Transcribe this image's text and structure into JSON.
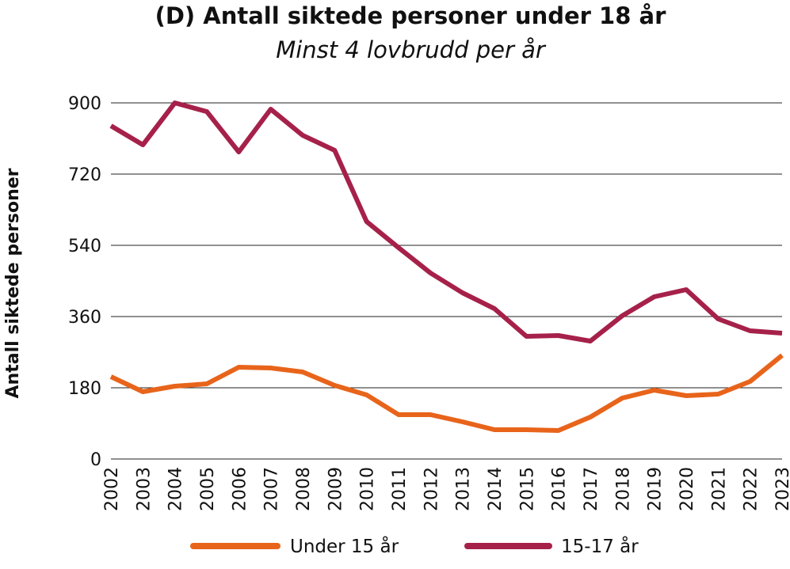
{
  "chart_data": {
    "type": "line",
    "title": "(D) Antall siktede personer under 18 år",
    "subtitle": "Minst 4 lovbrudd per år",
    "xlabel": "",
    "ylabel": "Antall siktede personer",
    "ylim": [
      0,
      900
    ],
    "yticks": [
      "0",
      "180",
      "360",
      "540",
      "720",
      "900"
    ],
    "grid": "horizontal",
    "legend": "bottom",
    "categories": [
      "2002",
      "2003",
      "2004",
      "2005",
      "2006",
      "2007",
      "2008",
      "2009",
      "2010",
      "2011",
      "2012",
      "2013",
      "2014",
      "2015",
      "2016",
      "2017",
      "2018",
      "2019",
      "2020",
      "2021",
      "2022",
      "2023"
    ],
    "series": [
      {
        "name": "Under 15 år",
        "color": "#e8641b",
        "values": [
          208,
          170,
          184,
          190,
          232,
          230,
          220,
          186,
          162,
          112,
          112,
          94,
          74,
          74,
          72,
          106,
          154,
          174,
          160,
          164,
          196,
          262
        ]
      },
      {
        "name": "15-17 år",
        "color": "#a6214a",
        "values": [
          842,
          794,
          900,
          878,
          776,
          884,
          818,
          780,
          600,
          534,
          470,
          420,
          380,
          310,
          312,
          298,
          362,
          410,
          428,
          354,
          324,
          318
        ]
      }
    ]
  }
}
